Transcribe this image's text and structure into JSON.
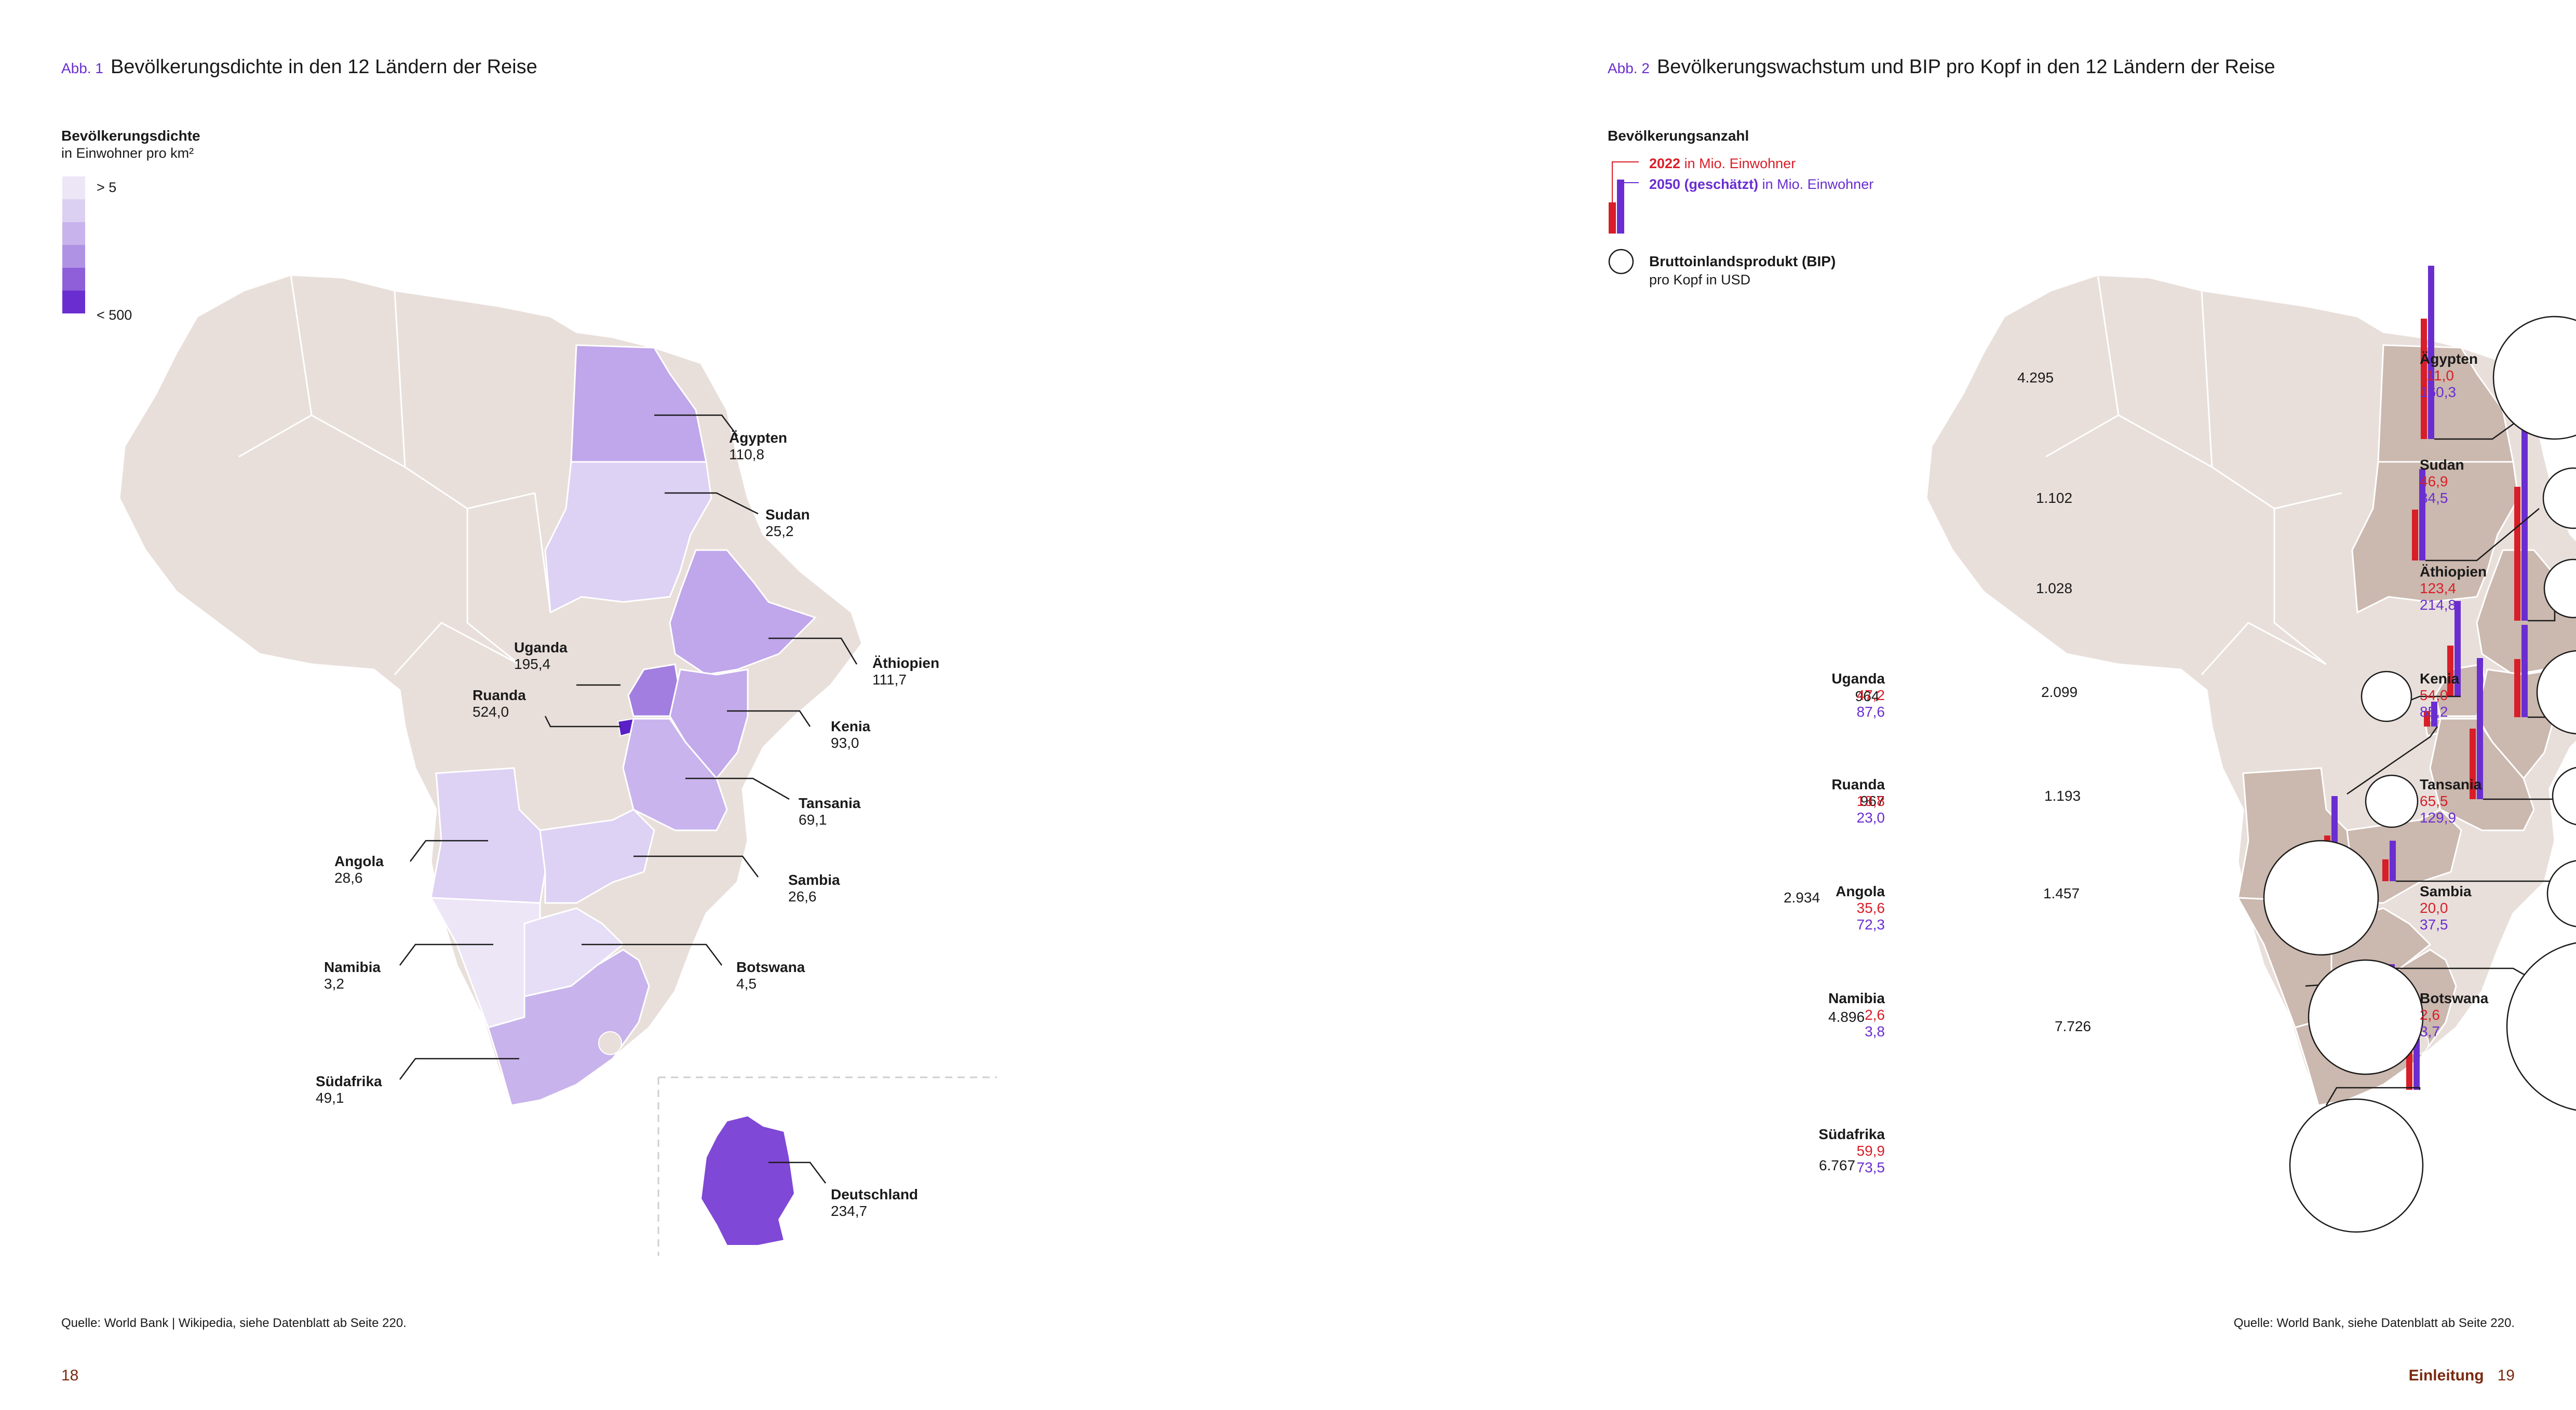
{
  "left": {
    "fig_label": "Abb. 1",
    "title": "Bevölkerungsdichte in den 12 Ländern der Reise",
    "legend": {
      "title": "Bevölkerungsdichte",
      "subtitle": "in Einwohner pro km²",
      "low": "> 5",
      "high": "< 500",
      "colors": [
        "#ece6f7",
        "#dcd0f2",
        "#c8b3ec",
        "#b092e4",
        "#8e5fd9",
        "#6a2ed0"
      ]
    },
    "countries": [
      {
        "name": "Ägypten",
        "value": "110,8",
        "color": "#c0a6ea"
      },
      {
        "name": "Sudan",
        "value": "25,2",
        "color": "#ddd1f4"
      },
      {
        "name": "Äthiopien",
        "value": "111,7",
        "color": "#c0a6ea"
      },
      {
        "name": "Uganda",
        "value": "195,4",
        "color": "#a27ee0"
      },
      {
        "name": "Ruanda",
        "value": "524,0",
        "color": "#5a1fc6"
      },
      {
        "name": "Kenia",
        "value": "93,0",
        "color": "#c3aaeb"
      },
      {
        "name": "Tansania",
        "value": "69,1",
        "color": "#c9b4ee"
      },
      {
        "name": "Angola",
        "value": "28,6",
        "color": "#ddd1f4"
      },
      {
        "name": "Sambia",
        "value": "26,6",
        "color": "#ddd1f4"
      },
      {
        "name": "Namibia",
        "value": "3,2",
        "color": "#ece6f7"
      },
      {
        "name": "Botswana",
        "value": "4,5",
        "color": "#e6def6"
      },
      {
        "name": "Südafrika",
        "value": "49,1",
        "color": "#c8b3ec"
      },
      {
        "name": "Deutschland",
        "value": "234,7",
        "color": "#8048d6"
      }
    ],
    "source": "Quelle: World Bank | Wikipedia, siehe Datenblatt ab Seite 220.",
    "page": "18"
  },
  "right": {
    "fig_label": "Abb. 2",
    "title": "Bevölkerungswachstum und BIP pro Kopf in den 12 Ländern der Reise",
    "legend": {
      "title": "Bevölkerungsanzahl",
      "y2022_bold": "2022",
      "y2022_rest": " in Mio. Einwohner",
      "y2050_bold": "2050 (geschätzt)",
      "y2050_rest": " in Mio. Einwohner",
      "gdp_title": "Bruttoinlandsprodukt (BIP)",
      "gdp_sub": "pro Kopf in USD",
      "color_2022": "#d81e28",
      "color_2050": "#6a2ed0"
    },
    "countries": [
      {
        "name": "Ägypten",
        "pop2022": "111,0",
        "pop2050": "160,3",
        "gdp": "4.295"
      },
      {
        "name": "Sudan",
        "pop2022": "46,9",
        "pop2050": "84,5",
        "gdp": "1.102"
      },
      {
        "name": "Äthiopien",
        "pop2022": "123,4",
        "pop2050": "214,8",
        "gdp": "1.028"
      },
      {
        "name": "Kenia",
        "pop2022": "54,0",
        "pop2050": "85,2",
        "gdp": "2.099"
      },
      {
        "name": "Tansania",
        "pop2022": "65,5",
        "pop2050": "129,9",
        "gdp": "1.193"
      },
      {
        "name": "Sambia",
        "pop2022": "20,0",
        "pop2050": "37,5",
        "gdp": "1.457"
      },
      {
        "name": "Botswana",
        "pop2022": "2,6",
        "pop2050": "3,7",
        "gdp": "7.726"
      },
      {
        "name": "Uganda",
        "pop2022": "47,2",
        "pop2050": "87,6",
        "gdp": "964"
      },
      {
        "name": "Ruanda",
        "pop2022": "13,8",
        "pop2050": "23,0",
        "gdp": "967"
      },
      {
        "name": "Angola",
        "pop2022": "35,6",
        "pop2050": "72,3",
        "gdp": "2.934"
      },
      {
        "name": "Namibia",
        "pop2022": "2,6",
        "pop2050": "3,8",
        "gdp": "4.896"
      },
      {
        "name": "Südafrika",
        "pop2022": "59,9",
        "pop2050": "73,5",
        "gdp": "6.767"
      }
    ],
    "source": "Quelle: World Bank, siehe Datenblatt ab Seite 220.",
    "section": "Einleitung",
    "page": "19"
  }
}
